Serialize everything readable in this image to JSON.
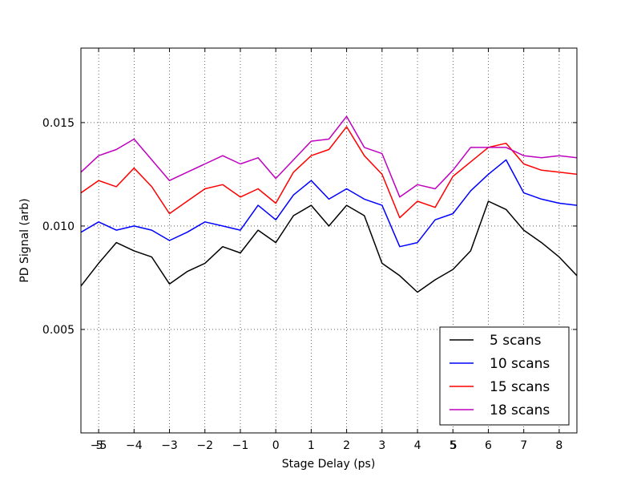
{
  "chart_data": {
    "type": "line",
    "title": "",
    "xlabel": "Stage Delay (ps)",
    "ylabel": "PD Signal (arb)",
    "xlim": [
      -5.5,
      8.5
    ],
    "ylim": [
      0.0,
      0.0186
    ],
    "grid": true,
    "grid_style": "dotted",
    "legend_position": "lower-right",
    "x_ticks": [
      {
        "value": -5,
        "label": "−5"
      },
      {
        "value": -4,
        "label": "−4"
      },
      {
        "value": -3,
        "label": "−3"
      },
      {
        "value": -2,
        "label": "−2"
      },
      {
        "value": -1,
        "label": "−1"
      },
      {
        "value": 0,
        "label": "0"
      },
      {
        "value": 1,
        "label": "1"
      },
      {
        "value": 2,
        "label": "2"
      },
      {
        "value": 3,
        "label": "3"
      },
      {
        "value": 4,
        "label": "4"
      },
      {
        "value": 5,
        "label": "5"
      },
      {
        "value": 6,
        "label": "6"
      },
      {
        "value": 7,
        "label": "7"
      },
      {
        "value": 8,
        "label": "8"
      }
    ],
    "x_extra_labels": [
      {
        "value": -5,
        "label": "5"
      },
      {
        "value": 5,
        "label": "5"
      }
    ],
    "y_ticks": [
      {
        "value": 0.005,
        "label": "0.005"
      },
      {
        "value": 0.01,
        "label": "0.010"
      },
      {
        "value": 0.015,
        "label": "0.015"
      }
    ],
    "x": [
      -5.5,
      -5.0,
      -4.5,
      -4.0,
      -3.5,
      -3.0,
      -2.5,
      -2.0,
      -1.5,
      -1.0,
      -0.5,
      0.0,
      0.5,
      1.0,
      1.5,
      2.0,
      2.5,
      3.0,
      3.5,
      4.0,
      4.5,
      5.0,
      5.5,
      6.0,
      6.5,
      7.0,
      7.5,
      8.0,
      8.5
    ],
    "series": [
      {
        "name": "5 scans",
        "color": "#000000",
        "values": [
          0.0071,
          0.0082,
          0.0092,
          0.0088,
          0.0085,
          0.0072,
          0.0078,
          0.0082,
          0.009,
          0.0087,
          0.0098,
          0.0092,
          0.0105,
          0.011,
          0.01,
          0.011,
          0.0105,
          0.0082,
          0.0076,
          0.0068,
          0.0074,
          0.0079,
          0.0088,
          0.0112,
          0.0108,
          0.0098,
          0.0092,
          0.0085,
          0.0076
        ]
      },
      {
        "name": "10 scans",
        "color": "#0000ff",
        "values": [
          0.0097,
          0.0102,
          0.0098,
          0.01,
          0.0098,
          0.0093,
          0.0097,
          0.0102,
          0.01,
          0.0098,
          0.011,
          0.0103,
          0.0115,
          0.0122,
          0.0113,
          0.0118,
          0.0113,
          0.011,
          0.009,
          0.0092,
          0.0103,
          0.0106,
          0.0117,
          0.0125,
          0.0132,
          0.0116,
          0.0113,
          0.0111,
          0.011
        ]
      },
      {
        "name": "15 scans",
        "color": "#ff0000",
        "values": [
          0.0116,
          0.0122,
          0.0119,
          0.0128,
          0.0119,
          0.0106,
          0.0112,
          0.0118,
          0.012,
          0.0114,
          0.0118,
          0.0111,
          0.0126,
          0.0134,
          0.0137,
          0.0148,
          0.0134,
          0.0125,
          0.0104,
          0.0112,
          0.0109,
          0.0124,
          0.0131,
          0.0138,
          0.014,
          0.013,
          0.0127,
          0.0126,
          0.0125
        ]
      },
      {
        "name": "18 scans",
        "color": "#bf00bf",
        "values": [
          0.0126,
          0.0134,
          0.0137,
          0.0142,
          0.0132,
          0.0122,
          0.0126,
          0.013,
          0.0134,
          0.013,
          0.0133,
          0.0123,
          0.0132,
          0.0141,
          0.0142,
          0.0153,
          0.0138,
          0.0135,
          0.0114,
          0.012,
          0.0118,
          0.0127,
          0.0138,
          0.0138,
          0.0138,
          0.0134,
          0.0133,
          0.0134,
          0.0133
        ]
      }
    ]
  }
}
